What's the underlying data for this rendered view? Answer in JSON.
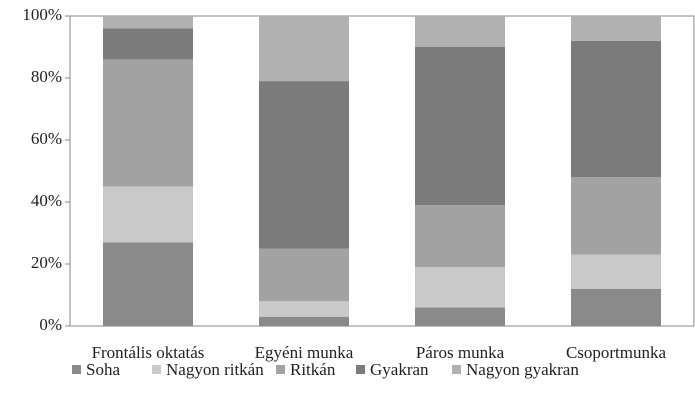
{
  "chart_data": {
    "type": "stacked_bar",
    "categories": [
      "Frontális oktatás",
      "Egyéni munka",
      "Páros munka",
      "Csoportmunka"
    ],
    "series": [
      {
        "name": "Soha",
        "color": "#8a8a8a",
        "values": [
          27,
          3,
          6,
          12
        ]
      },
      {
        "name": "Nagyon ritkán",
        "color": "#c9c9c9",
        "values": [
          18,
          5,
          13,
          11
        ]
      },
      {
        "name": "Ritkán",
        "color": "#a2a2a2",
        "values": [
          41,
          17,
          20,
          25
        ]
      },
      {
        "name": "Gyakran",
        "color": "#7b7b7b",
        "values": [
          10,
          54,
          51,
          44
        ]
      },
      {
        "name": "Nagyon gyakran",
        "color": "#b1b1b1",
        "values": [
          4,
          21,
          10,
          8
        ]
      }
    ],
    "ylim": [
      0,
      100
    ],
    "yticks": [
      {
        "value": 0,
        "label": "0%"
      },
      {
        "value": 20,
        "label": "20%"
      },
      {
        "value": 40,
        "label": "40%"
      },
      {
        "value": 60,
        "label": "60%"
      },
      {
        "value": 80,
        "label": "80%"
      },
      {
        "value": 100,
        "label": "100%"
      }
    ],
    "legend": "bottom"
  }
}
